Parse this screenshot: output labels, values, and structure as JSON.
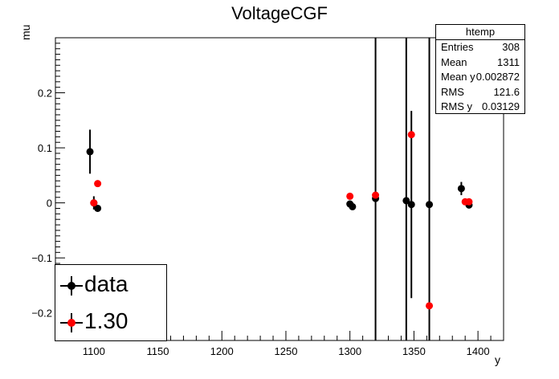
{
  "chart_data": {
    "type": "scatter",
    "title": "VoltageCGF",
    "xlabel": "y",
    "ylabel": "mu",
    "xlim": [
      1070,
      1420
    ],
    "ylim": [
      -0.25,
      0.3
    ],
    "xticks": [
      1100,
      1150,
      1200,
      1250,
      1300,
      1350,
      1400
    ],
    "yticks": [
      -0.2,
      -0.1,
      0,
      0.1,
      0.2
    ],
    "xtick_labels": [
      "1100",
      "1150",
      "1200",
      "1250",
      "1300",
      "1350",
      "1400"
    ],
    "ytick_labels": [
      "−0.2",
      "−0.1",
      "0",
      "0.1",
      "0.2"
    ],
    "legend_position": "bottom-left",
    "series": [
      {
        "name": "data",
        "color": "#000000",
        "points": [
          {
            "x": 1097,
            "y": 0.093,
            "err": 0.04
          },
          {
            "x": 1100,
            "y": 0.0,
            "err": 0.012
          },
          {
            "x": 1103,
            "y": -0.01,
            "err": 0.006
          },
          {
            "x": 1300,
            "y": -0.002,
            "err": 0.006
          },
          {
            "x": 1302,
            "y": -0.007,
            "err": 0.004
          },
          {
            "x": 1320,
            "y": 0.008,
            "err": 0.5
          },
          {
            "x": 1344,
            "y": 0.004,
            "err": 0.5
          },
          {
            "x": 1348,
            "y": -0.003,
            "err": 0.17
          },
          {
            "x": 1362,
            "y": -0.003,
            "err": 0.5
          },
          {
            "x": 1387,
            "y": 0.026,
            "err": 0.012
          },
          {
            "x": 1393,
            "y": -0.004,
            "err": 0.004
          }
        ]
      },
      {
        "name": "1.30",
        "color": "#ff0000",
        "points": [
          {
            "x": 1100,
            "y": 0.0
          },
          {
            "x": 1103,
            "y": 0.035
          },
          {
            "x": 1300,
            "y": 0.012
          },
          {
            "x": 1320,
            "y": 0.014
          },
          {
            "x": 1348,
            "y": 0.124
          },
          {
            "x": 1362,
            "y": -0.187
          },
          {
            "x": 1390,
            "y": 0.002
          },
          {
            "x": 1393,
            "y": 0.002
          }
        ]
      }
    ],
    "stats": {
      "title": "htemp",
      "rows": [
        {
          "label": "Entries",
          "value": "308"
        },
        {
          "label": "Mean",
          "value": "1311"
        },
        {
          "label": "Mean y",
          "value": "0.002872"
        },
        {
          "label": "RMS",
          "value": "121.6"
        },
        {
          "label": "RMS y",
          "value": "0.03129"
        }
      ]
    }
  }
}
